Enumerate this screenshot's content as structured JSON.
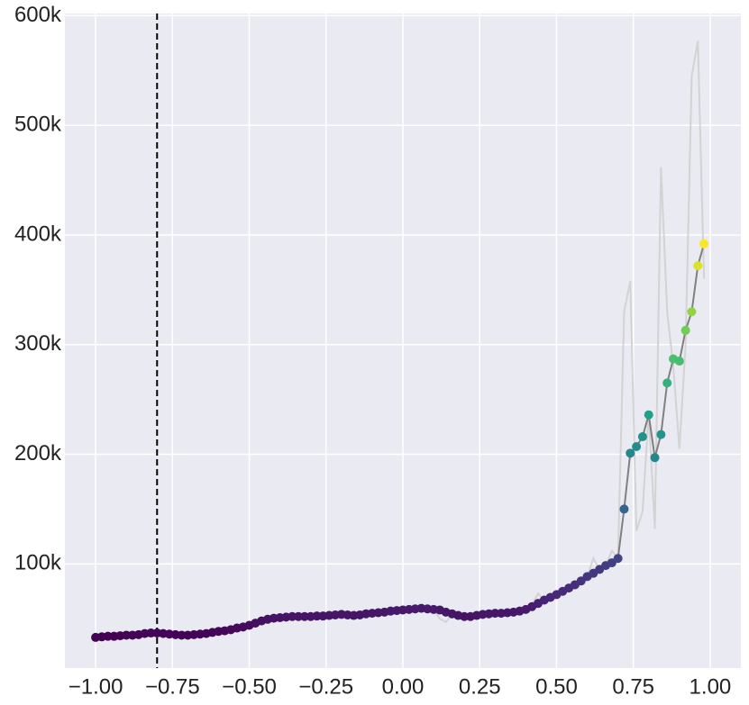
{
  "chart_data": {
    "type": "line",
    "x": [
      -1.0,
      -0.98,
      -0.96,
      -0.94,
      -0.92,
      -0.9,
      -0.88,
      -0.86,
      -0.84,
      -0.82,
      -0.8,
      -0.78,
      -0.76,
      -0.74,
      -0.72,
      -0.7,
      -0.68,
      -0.66,
      -0.64,
      -0.62,
      -0.6,
      -0.58,
      -0.56,
      -0.54,
      -0.52,
      -0.5,
      -0.48,
      -0.46,
      -0.44,
      -0.42,
      -0.4,
      -0.38,
      -0.36,
      -0.34,
      -0.32,
      -0.3,
      -0.28,
      -0.26,
      -0.24,
      -0.22,
      -0.2,
      -0.18,
      -0.16,
      -0.14,
      -0.12,
      -0.1,
      -0.08,
      -0.06,
      -0.04,
      -0.02,
      0.0,
      0.02,
      0.04,
      0.06,
      0.08,
      0.1,
      0.12,
      0.14,
      0.16,
      0.18,
      0.2,
      0.22,
      0.24,
      0.26,
      0.28,
      0.3,
      0.32,
      0.34,
      0.36,
      0.38,
      0.4,
      0.42,
      0.44,
      0.46,
      0.48,
      0.5,
      0.52,
      0.54,
      0.56,
      0.58,
      0.6,
      0.62,
      0.64,
      0.66,
      0.68,
      0.7,
      0.72,
      0.74,
      0.76,
      0.78,
      0.8,
      0.82,
      0.84,
      0.86,
      0.88,
      0.9,
      0.92,
      0.94,
      0.96,
      0.98
    ],
    "series": [
      {
        "color": "#d3d3d3",
        "values": [
          33000,
          33500,
          34000,
          34000,
          34500,
          35000,
          35000,
          35500,
          36500,
          37000,
          37000,
          36500,
          36000,
          35500,
          35000,
          35000,
          35500,
          36000,
          36500,
          37500,
          38500,
          39000,
          40000,
          41500,
          42500,
          44000,
          46000,
          48000,
          49500,
          50500,
          51000,
          51500,
          52000,
          52000,
          52000,
          52000,
          52500,
          52500,
          53000,
          53500,
          54000,
          53500,
          53000,
          53500,
          54500,
          55000,
          55500,
          56000,
          57000,
          57500,
          58000,
          58500,
          59000,
          59500,
          59000,
          58500,
          50000,
          47000,
          54500,
          53000,
          52000,
          52000,
          53000,
          54000,
          54500,
          55000,
          55000,
          55500,
          56000,
          57000,
          58500,
          63000,
          73000,
          67000,
          69500,
          72000,
          75000,
          78000,
          81000,
          84500,
          88500,
          105000,
          95000,
          98500,
          112000,
          105000,
          330000,
          358000,
          130000,
          148000,
          238000,
          132000,
          462000,
          330000,
          280000,
          205000,
          300000,
          545000,
          577000,
          360000
        ]
      },
      {
        "color": "#808080",
        "marker_colormap": "viridis",
        "values": [
          33000,
          33500,
          34000,
          34000,
          34500,
          35000,
          35000,
          35500,
          36500,
          37000,
          37000,
          36500,
          36000,
          35500,
          35000,
          35000,
          35500,
          36000,
          36500,
          37500,
          38500,
          39000,
          40000,
          41500,
          42500,
          44000,
          46000,
          48000,
          49500,
          50500,
          51000,
          51500,
          52000,
          52000,
          52000,
          52000,
          52500,
          52500,
          53000,
          53500,
          54000,
          53500,
          53000,
          53500,
          54500,
          55000,
          55500,
          56000,
          57000,
          57500,
          58000,
          58500,
          59000,
          59500,
          59000,
          58500,
          58000,
          56000,
          54500,
          53000,
          52000,
          52000,
          53000,
          54000,
          54500,
          55000,
          55000,
          55500,
          56000,
          57000,
          58500,
          61000,
          64000,
          67000,
          69500,
          72000,
          75000,
          78000,
          81000,
          84500,
          88500,
          91500,
          95000,
          98500,
          101000,
          105000,
          150000,
          201000,
          207000,
          216000,
          236000,
          197000,
          218000,
          265000,
          287000,
          285000,
          313000,
          330000,
          372000,
          392000
        ]
      }
    ],
    "vlines": [
      -0.8
    ],
    "xlim": [
      -1.1,
      1.1
    ],
    "ylim": [
      5000,
      602000
    ],
    "xticks": [
      {
        "value": -1.0,
        "label": "−1.00"
      },
      {
        "value": -0.75,
        "label": "−0.75"
      },
      {
        "value": -0.5,
        "label": "−0.50"
      },
      {
        "value": -0.25,
        "label": "−0.25"
      },
      {
        "value": 0,
        "label": "0.00"
      },
      {
        "value": 0.25,
        "label": "0.25"
      },
      {
        "value": 0.5,
        "label": "0.50"
      },
      {
        "value": 0.75,
        "label": "0.75"
      },
      {
        "value": 1.0,
        "label": "1.00"
      }
    ],
    "yticks": [
      {
        "value": 100000,
        "label": "100k"
      },
      {
        "value": 200000,
        "label": "200k"
      },
      {
        "value": 300000,
        "label": "300k"
      },
      {
        "value": 400000,
        "label": "400k"
      },
      {
        "value": 500000,
        "label": "500k"
      },
      {
        "value": 600000,
        "label": "600k"
      }
    ],
    "grid": true
  }
}
